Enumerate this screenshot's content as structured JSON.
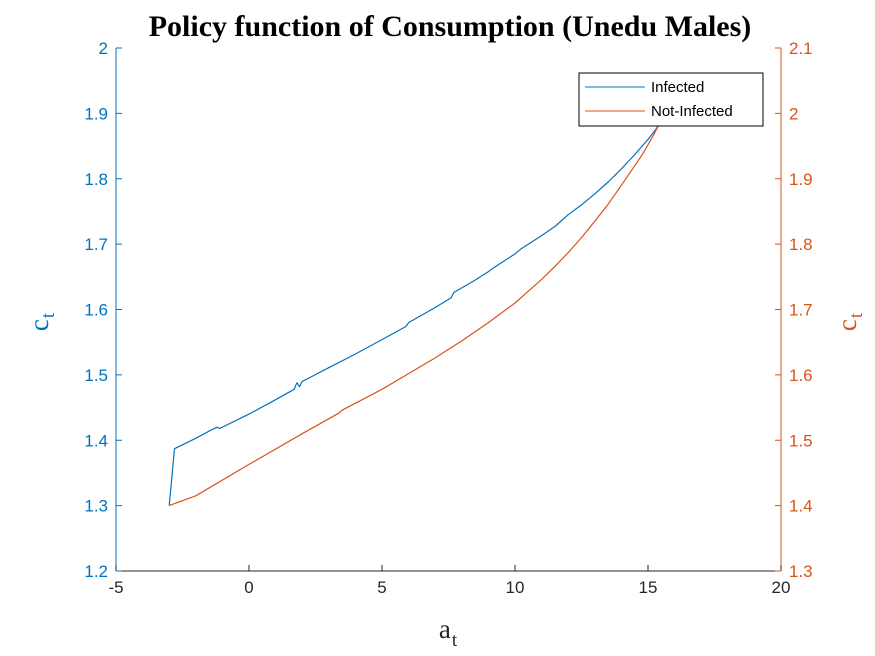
{
  "chart_data": {
    "type": "line",
    "title": "Policy function of Consumption (Unedu Males)",
    "xlabel": {
      "main": "a",
      "sub": "t"
    },
    "ylabel_left": {
      "main": "c",
      "sub": "t"
    },
    "ylabel_right": {
      "main": "c",
      "sub": "t"
    },
    "xlim": [
      -5,
      20
    ],
    "ylim_left": [
      1.2,
      2.0
    ],
    "ylim_right": [
      1.3,
      2.1
    ],
    "xticks": [
      "-5",
      "0",
      "5",
      "10",
      "15",
      "20"
    ],
    "yticks_left": [
      "1.2",
      "1.3",
      "1.4",
      "1.5",
      "1.6",
      "1.7",
      "1.8",
      "1.9",
      "2"
    ],
    "yticks_right": [
      "1.3",
      "1.4",
      "1.5",
      "1.6",
      "1.7",
      "1.8",
      "1.9",
      "2",
      "2.1"
    ],
    "grid": false,
    "legend_position": "top-right",
    "series": [
      {
        "name": "Infected",
        "axis": "left",
        "color": "#0072BD",
        "x": [
          -3.0,
          -2.8,
          -2.5,
          -2.0,
          -1.5,
          -1.2,
          -1.1,
          0.0,
          1.0,
          1.7,
          1.8,
          1.9,
          2.0,
          2.1,
          3.0,
          4.0,
          5.0,
          5.9,
          6.0,
          7.0,
          7.6,
          7.7,
          8.5,
          9.0,
          9.2,
          10.0,
          10.2,
          11.0,
          11.5,
          12.0,
          12.5,
          13.0,
          13.5,
          14.0,
          14.5,
          15.0,
          15.3,
          15.6,
          15.9
        ],
        "y": [
          1.3,
          1.387,
          1.393,
          1.403,
          1.414,
          1.42,
          1.418,
          1.44,
          1.462,
          1.478,
          1.488,
          1.482,
          1.49,
          1.492,
          1.511,
          1.532,
          1.554,
          1.574,
          1.58,
          1.603,
          1.618,
          1.626,
          1.645,
          1.658,
          1.664,
          1.685,
          1.692,
          1.713,
          1.727,
          1.745,
          1.76,
          1.777,
          1.795,
          1.815,
          1.837,
          1.86,
          1.876,
          1.895,
          1.915
        ]
      },
      {
        "name": "Not-Infected",
        "axis": "right",
        "color": "#D95319",
        "x": [
          -3.0,
          -2.0,
          0.0,
          2.0,
          3.4,
          3.5,
          5.0,
          6.0,
          7.0,
          8.0,
          9.0,
          10.0,
          10.5,
          11.0,
          11.5,
          12.0,
          12.5,
          13.0,
          13.5,
          14.0,
          14.5,
          14.8,
          15.0,
          15.2,
          15.4,
          15.6,
          15.75,
          15.85,
          15.92
        ],
        "y": [
          1.4,
          1.415,
          1.463,
          1.51,
          1.542,
          1.546,
          1.578,
          1.602,
          1.626,
          1.652,
          1.68,
          1.71,
          1.728,
          1.746,
          1.766,
          1.787,
          1.81,
          1.835,
          1.861,
          1.89,
          1.92,
          1.938,
          1.952,
          1.966,
          1.982,
          2.0,
          2.02,
          2.04,
          2.06
        ]
      }
    ]
  }
}
